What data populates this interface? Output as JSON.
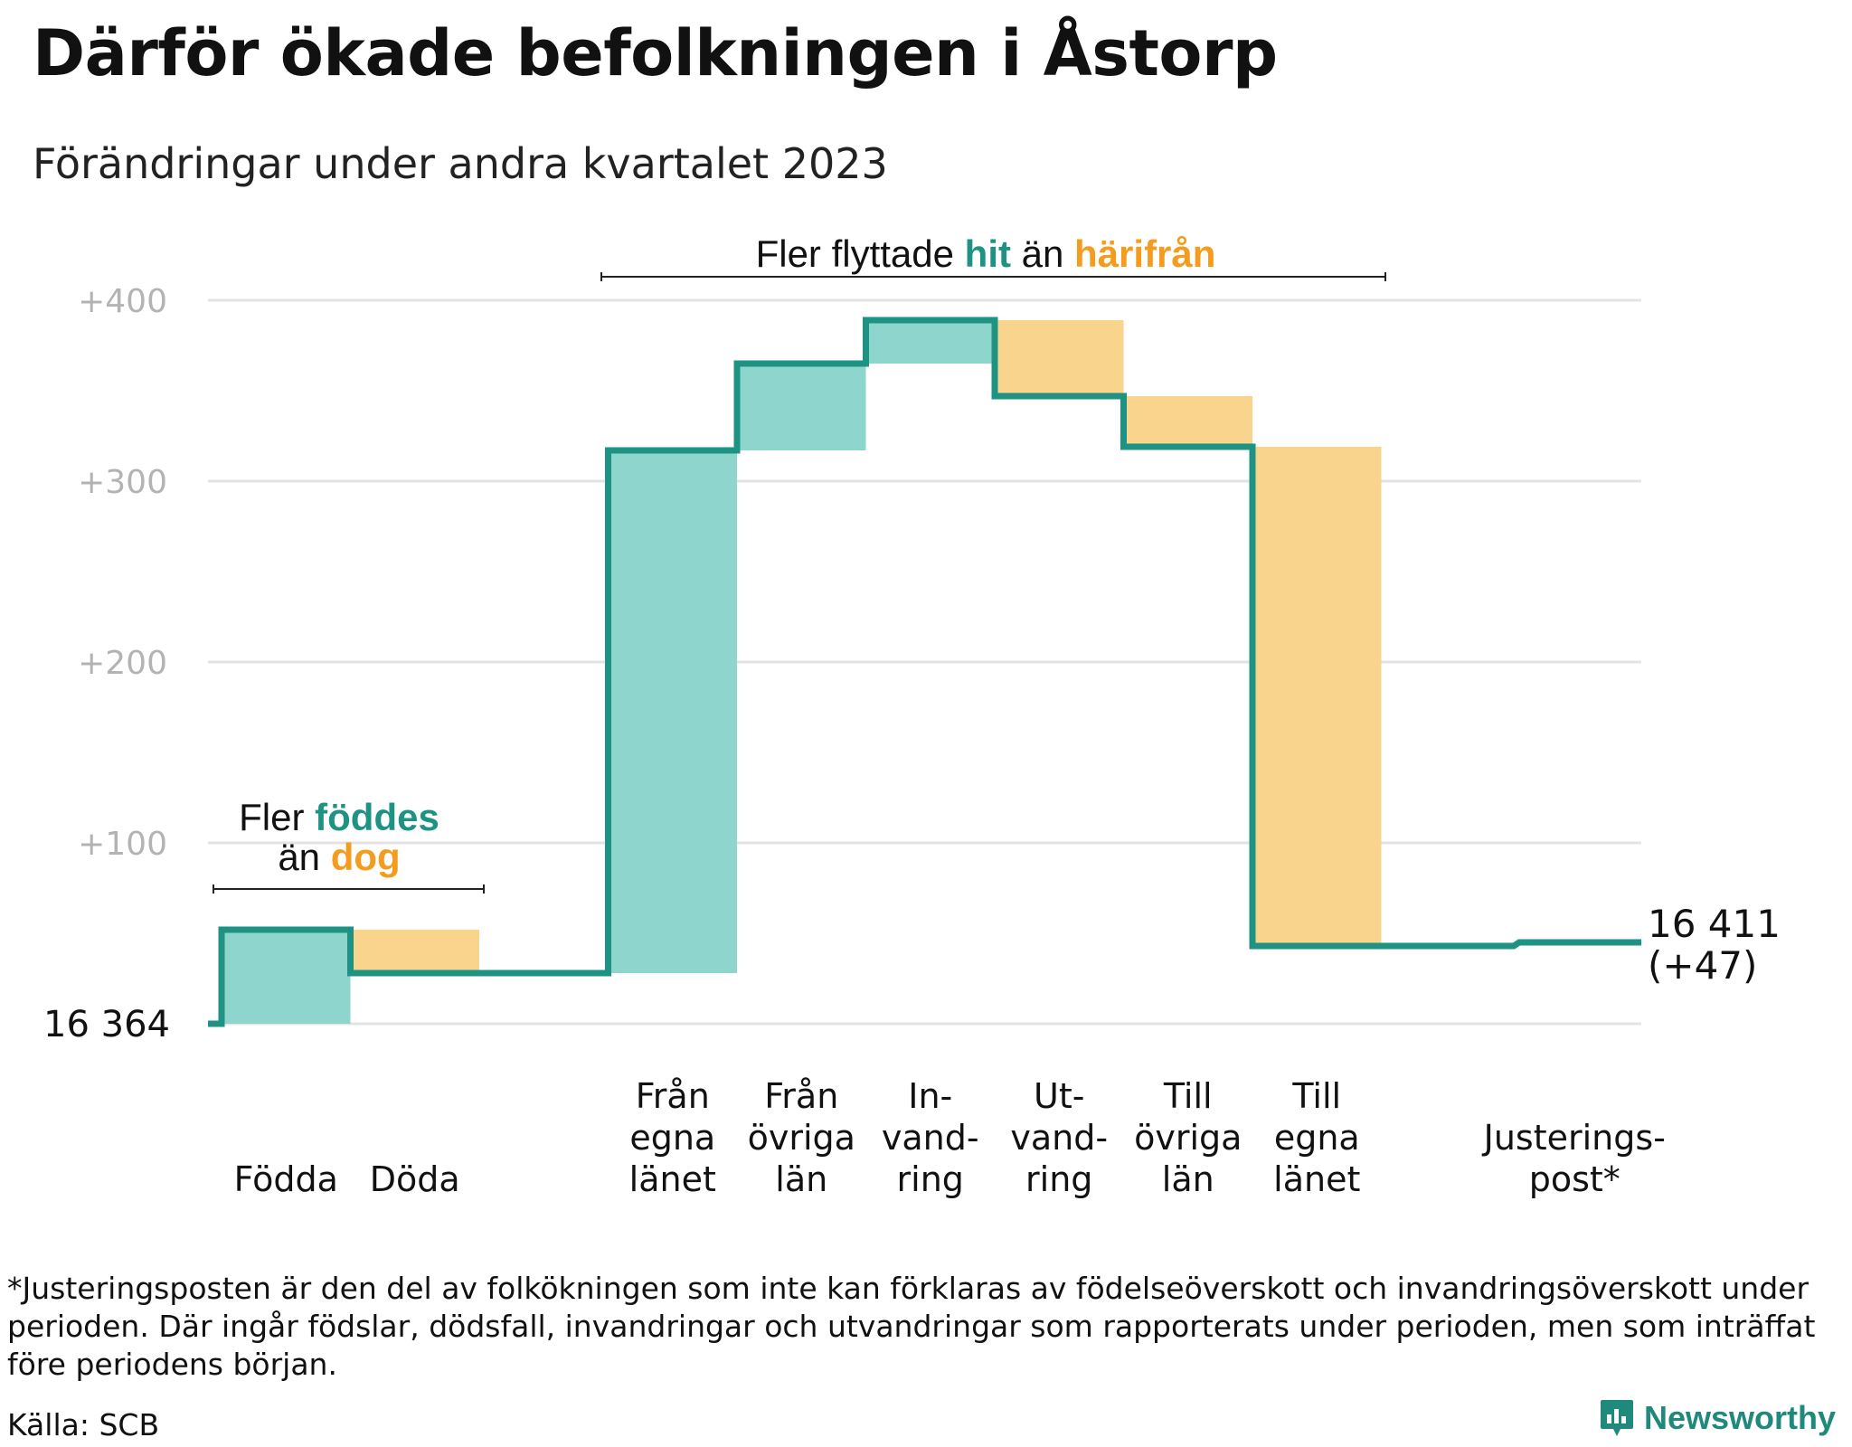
{
  "title": "Därför ökade befolkningen i Åstorp",
  "subtitle": "Förändringar under andra kvartalet 2023",
  "chart_data": {
    "type": "waterfall",
    "y_axis": {
      "range_relative": [
        0,
        400
      ],
      "ticks": [
        {
          "value": 100,
          "label": "+100"
        },
        {
          "value": 200,
          "label": "+200"
        },
        {
          "value": 300,
          "label": "+300"
        },
        {
          "value": 400,
          "label": "+400"
        }
      ],
      "grid": true
    },
    "start": {
      "value": 16364,
      "label": "16 364"
    },
    "steps": [
      {
        "category": "Födda",
        "label_lines": [
          "Födda"
        ],
        "change": 52,
        "direction": "increase"
      },
      {
        "category": "Döda",
        "label_lines": [
          "Döda"
        ],
        "change": -24,
        "direction": "decrease"
      },
      {
        "category": "",
        "label_lines": [],
        "change": 0,
        "direction": "none"
      },
      {
        "category": "Från egna länet",
        "label_lines": [
          "Från",
          "egna",
          "länet"
        ],
        "change": 289,
        "direction": "increase"
      },
      {
        "category": "Från övriga län",
        "label_lines": [
          "Från",
          "övriga",
          "län"
        ],
        "change": 48,
        "direction": "increase"
      },
      {
        "category": "Invandring",
        "label_lines": [
          "In-",
          "vand-",
          "ring"
        ],
        "change": 24,
        "direction": "increase"
      },
      {
        "category": "Utvandring",
        "label_lines": [
          "Ut-",
          "vand-",
          "ring"
        ],
        "change": -42,
        "direction": "decrease"
      },
      {
        "category": "Till övriga län",
        "label_lines": [
          "Till",
          "övriga",
          "län"
        ],
        "change": -28,
        "direction": "decrease"
      },
      {
        "category": "Till egna länet",
        "label_lines": [
          "Till",
          "egna",
          "länet"
        ],
        "change": -276,
        "direction": "decrease"
      },
      {
        "category": "",
        "label_lines": [],
        "change": 0,
        "direction": "none"
      },
      {
        "category": "Justeringspost*",
        "label_lines": [
          "Justerings-",
          "post*"
        ],
        "change": 2,
        "direction": "adjustment"
      }
    ],
    "end": {
      "value": 16411,
      "label": "16 411",
      "change_label": "(+47)"
    },
    "annotations": [
      {
        "id": "births",
        "lines": [
          [
            {
              "text": "Fler ",
              "style": "plain"
            },
            {
              "text": "föddes",
              "style": "increase"
            }
          ],
          [
            {
              "text": "än ",
              "style": "plain"
            },
            {
              "text": "dog",
              "style": "decrease"
            }
          ]
        ]
      },
      {
        "id": "migration",
        "lines": [
          [
            {
              "text": "Fler flyttade ",
              "style": "plain"
            },
            {
              "text": "hit",
              "style": "increase"
            },
            {
              "text": " än ",
              "style": "plain"
            },
            {
              "text": "härifrån",
              "style": "decrease"
            }
          ]
        ]
      }
    ],
    "colors": {
      "increase_fill": "#8dd5cd",
      "decrease_fill": "#f9d48c",
      "line": "#1e9384",
      "increase_text": "#1e9384",
      "decrease_text": "#f39c1e",
      "grid": "#e3e3e3",
      "tick_text": "#b3b3b3"
    }
  },
  "footnote": "*Justeringsposten är den del av folkökningen som inte kan förklaras av födelseöverskott och invandringsöverskott under perioden. Där ingår födslar, dödsfall, invandringar och utvandringar som rapporterats under perioden, men som inträffat före periodens början.",
  "source": "Källa: SCB",
  "brand": {
    "name": "Newsworthy",
    "icon": "newsworthy-logo-icon",
    "color": "#1f8a7c"
  }
}
